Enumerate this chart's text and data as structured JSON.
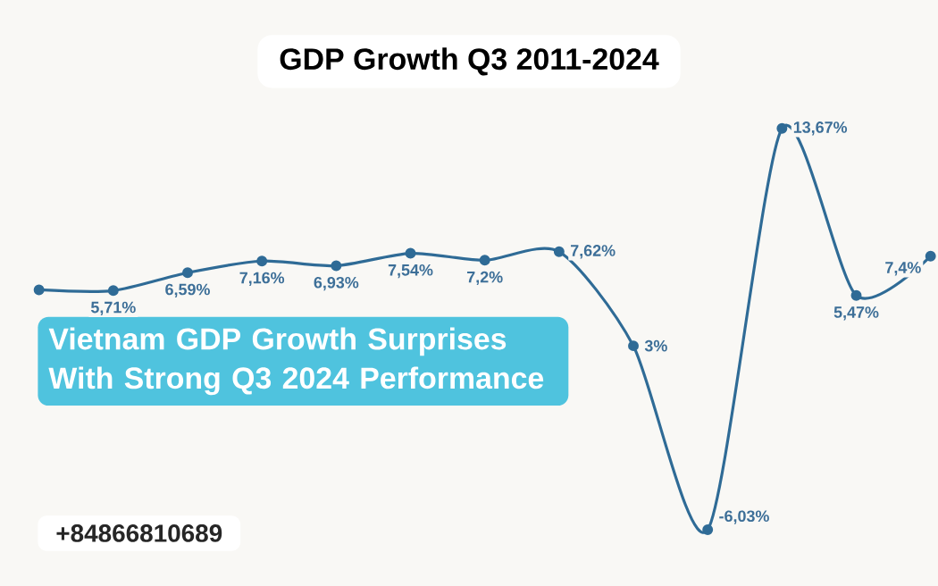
{
  "chart_data": {
    "type": "line",
    "title": "GDP Growth Q3 2011-2024",
    "subtitle": "Vietnam GDP Growth Surprises With Strong Q3 2024 Performance",
    "annotations": [
      "+84866810689"
    ],
    "categories": [
      null,
      null,
      null,
      null,
      null,
      null,
      null,
      null,
      null,
      null,
      null,
      null,
      null
    ],
    "values": [
      5.75,
      5.71,
      6.59,
      7.16,
      6.93,
      7.54,
      7.2,
      7.62,
      3,
      -6.03,
      13.67,
      5.47,
      7.4
    ],
    "value_labels": [
      null,
      "5,71%",
      "6,59%",
      "7,16%",
      "6,93%",
      "7,54%",
      "7,2%",
      "7,62%",
      "3%",
      "-6,03%",
      "13,67%",
      "5,47%",
      "7,4%"
    ],
    "color": "#2f6b96",
    "marker": "circle",
    "line_style": "solid"
  }
}
